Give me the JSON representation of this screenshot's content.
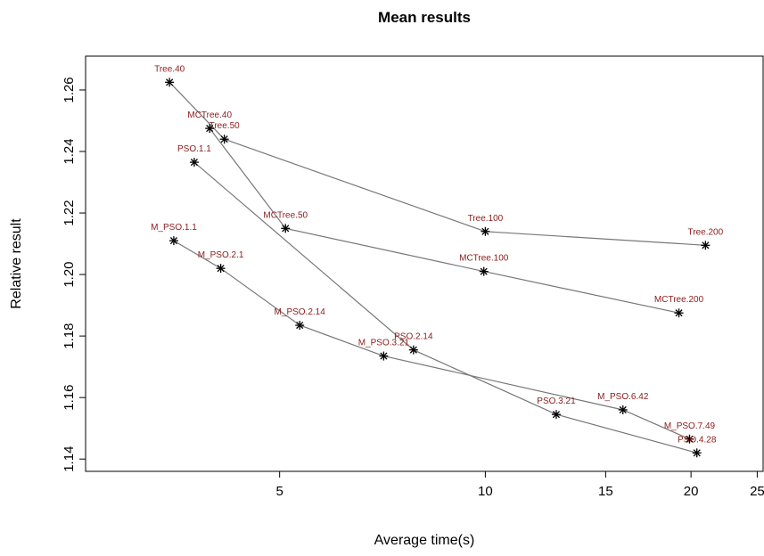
{
  "chart_data": {
    "type": "line",
    "title": "Mean results",
    "xlabel": "Average time(s)",
    "ylabel": "Relative result",
    "x_scale": "log",
    "xlim": [
      2.6,
      25.5
    ],
    "ylim": [
      1.136,
      1.271
    ],
    "x_ticks": [
      5,
      10,
      15,
      20,
      25
    ],
    "y_ticks": [
      1.14,
      1.16,
      1.18,
      1.2,
      1.22,
      1.24,
      1.26
    ],
    "y_tick_labels": [
      "1.14",
      "1.16",
      "1.18",
      "1.20",
      "1.22",
      "1.24",
      "1.26"
    ],
    "grid": false,
    "legend": "none",
    "line_color": "#777777",
    "marker_color": "#000000",
    "label_color": "#8b1a1a",
    "series": [
      {
        "points": [
          {
            "x": 3.45,
            "y": 1.2625,
            "label": "Tree.40"
          },
          {
            "x": 4.15,
            "y": 1.244,
            "label": "Tree.50"
          },
          {
            "x": 10.0,
            "y": 1.214,
            "label": "Tree.100"
          },
          {
            "x": 21.0,
            "y": 1.2095,
            "label": "Tree.200"
          }
        ]
      },
      {
        "points": [
          {
            "x": 3.95,
            "y": 1.2475,
            "label": "MCTree.40"
          },
          {
            "x": 5.1,
            "y": 1.215,
            "label": "MCTree.50"
          },
          {
            "x": 9.95,
            "y": 1.201,
            "label": "MCTree.100"
          },
          {
            "x": 19.2,
            "y": 1.1875,
            "label": "MCTree.200"
          }
        ]
      },
      {
        "points": [
          {
            "x": 3.75,
            "y": 1.2365,
            "label": "PSO.1.1"
          },
          {
            "x": 7.85,
            "y": 1.1755,
            "label": "PSO.2.14"
          },
          {
            "x": 12.7,
            "y": 1.1545,
            "label": "PSO.3.21"
          },
          {
            "x": 20.4,
            "y": 1.142,
            "label": "PSO.4.28"
          }
        ]
      },
      {
        "points": [
          {
            "x": 3.5,
            "y": 1.211,
            "label": "M_PSO.1.1"
          },
          {
            "x": 4.1,
            "y": 1.202,
            "label": "M_PSO.2.1"
          },
          {
            "x": 5.35,
            "y": 1.1835,
            "label": "M_PSO.2.14"
          },
          {
            "x": 7.1,
            "y": 1.1735,
            "label": "M_PSO.3.21"
          },
          {
            "x": 15.9,
            "y": 1.156,
            "label": "M_PSO.6.42"
          },
          {
            "x": 19.9,
            "y": 1.1465,
            "label": "M_PSO.7.49"
          }
        ]
      }
    ]
  }
}
